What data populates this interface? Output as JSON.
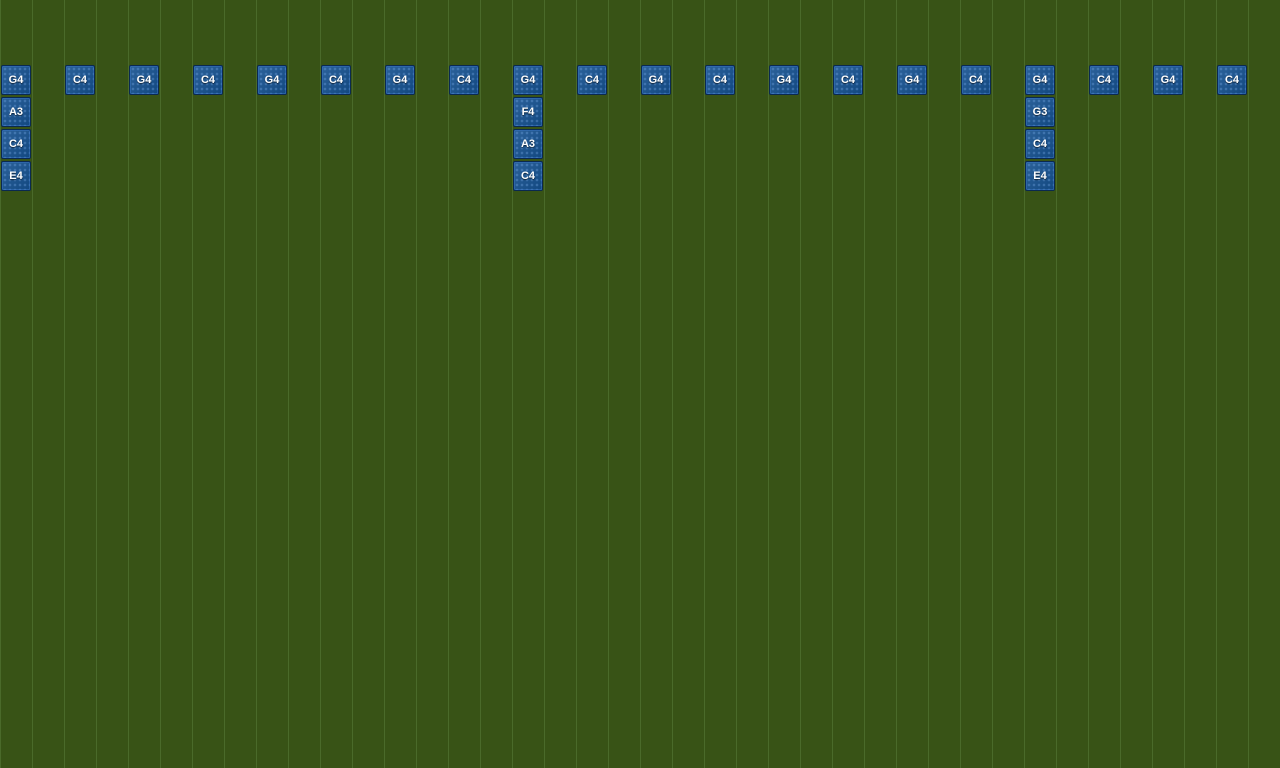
{
  "grid": {
    "background_color": "#385316",
    "line_color": "#4a6a2a",
    "block_color": "#14508f"
  },
  "columns": [
    [
      "G4",
      "A3",
      "C4",
      "E4"
    ],
    [],
    [
      "C4"
    ],
    [],
    [
      "G4"
    ],
    [],
    [
      "C4"
    ],
    [],
    [
      "G4"
    ],
    [],
    [
      "C4"
    ],
    [],
    [
      "G4"
    ],
    [],
    [
      "C4"
    ],
    [],
    [
      "G4",
      "F4",
      "A3",
      "C4"
    ],
    [],
    [
      "C4"
    ],
    [],
    [
      "G4"
    ],
    [],
    [
      "C4"
    ],
    [],
    [
      "G4"
    ],
    [],
    [
      "C4"
    ],
    [],
    [
      "G4"
    ],
    [],
    [
      "C4"
    ],
    [],
    [
      "G4",
      "G3",
      "C4",
      "E4"
    ],
    [],
    [
      "C4"
    ],
    [],
    [
      "G4"
    ],
    [],
    [
      "C4"
    ],
    []
  ]
}
